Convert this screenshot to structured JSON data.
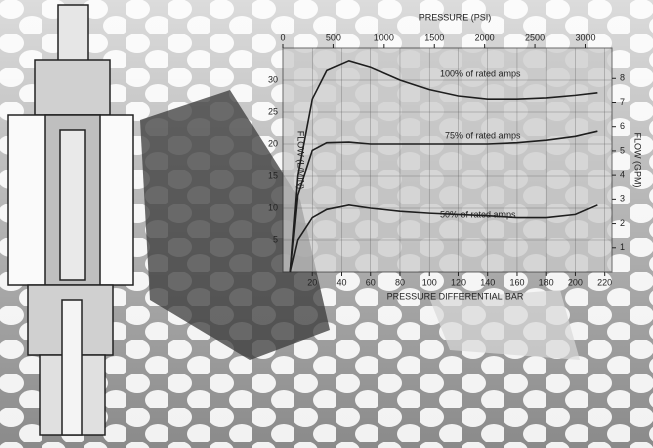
{
  "chart_data": {
    "type": "line",
    "xlabel": "PRESSURE DIFFERENTIAL BAR",
    "x2label": "PRESSURE (PSI)",
    "ylabel": "FLOW (L/MIN)",
    "y2label": "FLOW (GPM)",
    "x": [
      5,
      10,
      20,
      30,
      45,
      60,
      80,
      100,
      120,
      140,
      160,
      180,
      200,
      215
    ],
    "series": [
      {
        "name": "100% of rated amps",
        "color": "#1e1e1e",
        "values": [
          0,
          15,
          27,
          31.5,
          33,
          32,
          30,
          28.5,
          27.5,
          27,
          27,
          27.2,
          27.6,
          28
        ]
      },
      {
        "name": "75% of rated amps",
        "color": "#1e1e1e",
        "values": [
          0,
          12,
          19,
          20.2,
          20.3,
          20,
          20,
          20,
          20,
          20,
          20.2,
          20.6,
          21.2,
          22
        ]
      },
      {
        "name": "50% of rated amps",
        "color": "#1e1e1e",
        "values": [
          0,
          5,
          8.5,
          9.8,
          10.5,
          10,
          9.5,
          9.2,
          9,
          8.8,
          8.5,
          8.5,
          9,
          10.5
        ]
      }
    ],
    "xlim": [
      0,
      225
    ],
    "xticks": [
      20,
      40,
      60,
      80,
      100,
      120,
      140,
      160,
      180,
      200,
      220
    ],
    "x2lim": [
      0,
      3263
    ],
    "x2ticks": [
      0,
      500,
      1000,
      1500,
      2000,
      2500,
      3000
    ],
    "ylim": [
      0,
      35
    ],
    "yticks": [
      5,
      10,
      15,
      20,
      25,
      30
    ],
    "y2lim": [
      0,
      9.25
    ],
    "y2ticks": [
      1,
      2,
      3,
      4,
      5,
      6,
      7,
      8
    ],
    "grid": true
  }
}
